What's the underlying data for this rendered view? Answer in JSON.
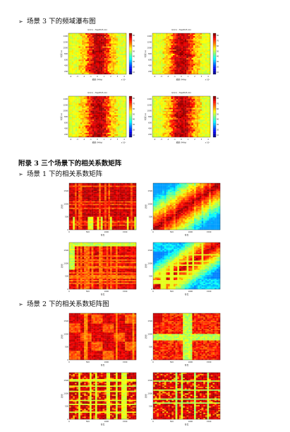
{
  "sections": {
    "s1_heading": "场景 3 下的频域瀑布图",
    "appendix_heading": "附录 3  三个场景下的相关系数矩阵",
    "s2_heading": "场景 1 下的相关系数矩阵",
    "s3_heading": "场景 2 下的相关系数矩阵图"
  },
  "waterfall": {
    "panel_titles": [
      "Q1(1) - Tap#0(5.1k)",
      "Q1(1) - Tap#0(5.1k)",
      "Q1(1) - Tap#0(5.1k)",
      "Q1(1) - Tap#0(5.1k)"
    ],
    "y_ticks": [
      "1400",
      "1200",
      "1000",
      "800",
      "600",
      "400",
      "200"
    ],
    "x_ticks": [
      "-4",
      "-3",
      "-2",
      "-1",
      "0",
      "1",
      "2",
      "3",
      "4"
    ],
    "cb_ticks": [
      "80",
      "70",
      "60",
      "50",
      "40",
      "30",
      "20",
      "10"
    ],
    "x_label": "频率 (MHz)",
    "y_label": "时间 (s)",
    "x_exp": "x 10⁶"
  },
  "corr": {
    "ticks": [
      "0",
      "500",
      "1000",
      "1500"
    ],
    "x_label": "符号",
    "y_label": "符号"
  }
}
